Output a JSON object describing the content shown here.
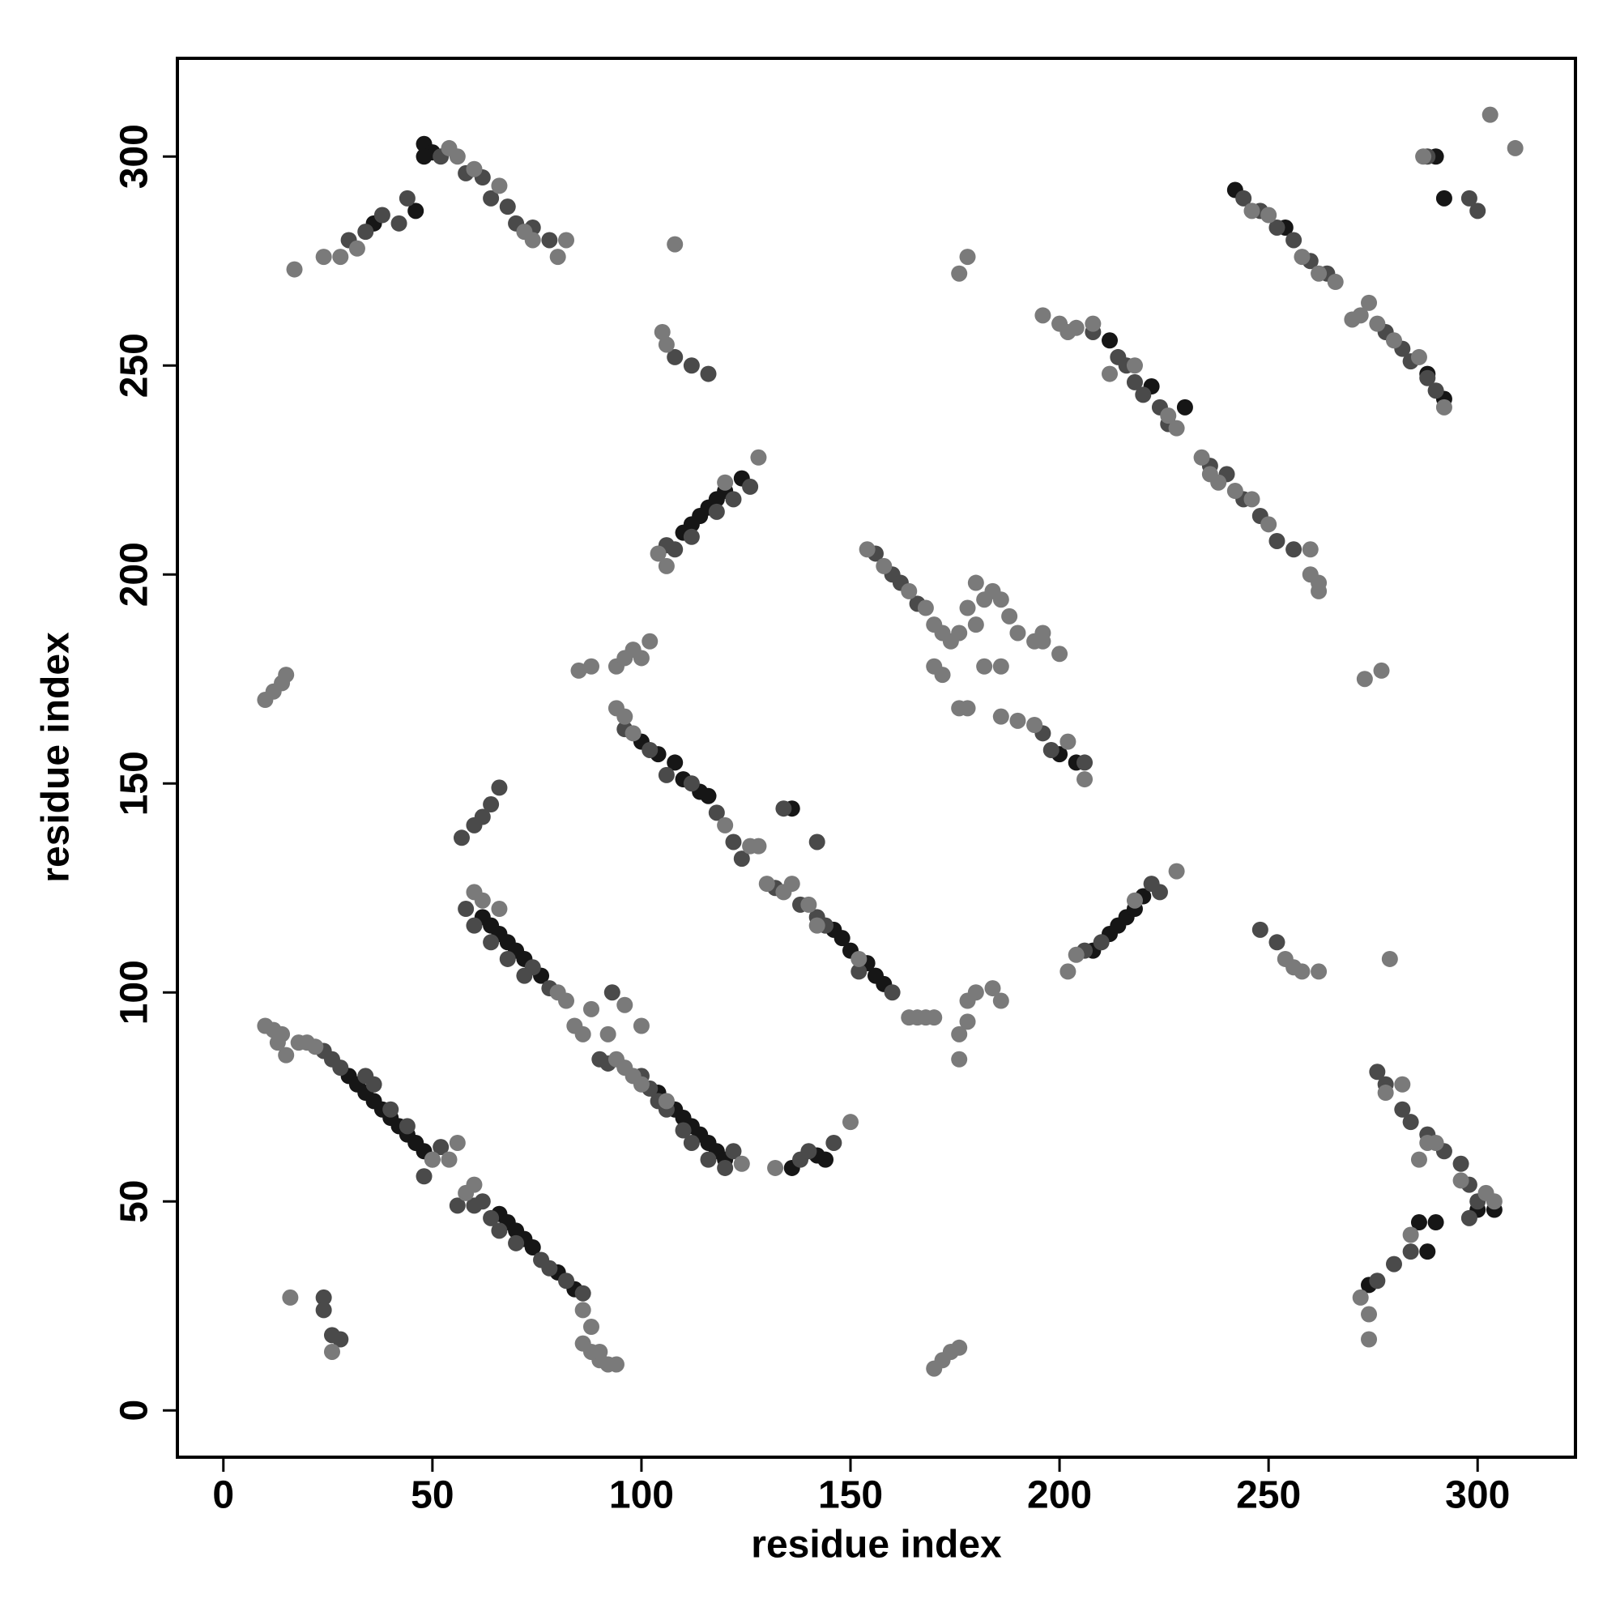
{
  "chart_data": {
    "type": "scatter",
    "xlabel": "residue index",
    "ylabel": "residue index",
    "xlim": [
      -11,
      323.4
    ],
    "ylim": [
      -11.2,
      323.5
    ],
    "xticks": [
      0,
      50,
      100,
      150,
      200,
      250,
      300
    ],
    "yticks": [
      0,
      50,
      100,
      150,
      200,
      250,
      300
    ],
    "grid": false,
    "series": [
      {
        "color": "#161616",
        "x": [
          30,
          32,
          34,
          36,
          38,
          40,
          42,
          44,
          46,
          48,
          66,
          68,
          70,
          72,
          74,
          80,
          84,
          62,
          64,
          66,
          68,
          70,
          72,
          76,
          104,
          108,
          110,
          112,
          114,
          116,
          118,
          120,
          100,
          104,
          108,
          110,
          114,
          116,
          146,
          148,
          150,
          154,
          156,
          158,
          110,
          112,
          114,
          116,
          118,
          120,
          124,
          208,
          212,
          214,
          216,
          218,
          220,
          48,
          50,
          36,
          144,
          142,
          136,
          274,
          286,
          288,
          290,
          300,
          304,
          292,
          290,
          292,
          136,
          48,
          46,
          200,
          204,
          212,
          222,
          230,
          242,
          254,
          288
        ],
        "y": [
          80,
          78,
          76,
          74,
          72,
          70,
          68,
          66,
          64,
          62,
          47,
          45,
          43,
          41,
          39,
          33,
          29,
          118,
          116,
          114,
          112,
          110,
          108,
          104,
          76,
          72,
          70,
          68,
          66,
          64,
          62,
          60,
          160,
          157,
          155,
          151,
          148,
          147,
          115,
          113,
          110,
          107,
          104,
          102,
          210,
          212,
          214,
          216,
          218,
          220,
          223,
          110,
          114,
          116,
          118,
          120,
          123,
          303,
          301,
          284,
          60,
          61,
          58,
          30,
          45,
          38,
          45,
          48,
          48,
          290,
          300,
          242,
          144,
          300,
          287,
          157,
          155,
          256,
          245,
          240,
          292,
          283,
          248
        ]
      },
      {
        "color": "#4a4a4a",
        "x": [
          24,
          26,
          28,
          34,
          36,
          40,
          44,
          50,
          52,
          48,
          56,
          60,
          62,
          64,
          66,
          70,
          76,
          78,
          82,
          86,
          58,
          60,
          64,
          68,
          72,
          74,
          78,
          90,
          92,
          100,
          102,
          104,
          106,
          110,
          112,
          116,
          120,
          122,
          96,
          102,
          106,
          112,
          118,
          122,
          124,
          132,
          138,
          142,
          144,
          152,
          160,
          156,
          160,
          162,
          166,
          196,
          198,
          206,
          208,
          214,
          216,
          218,
          220,
          224,
          226,
          236,
          240,
          244,
          248,
          252,
          256,
          244,
          248,
          252,
          256,
          260,
          264,
          278,
          282,
          284,
          288,
          290,
          106,
          108,
          112,
          118,
          122,
          126,
          206,
          210,
          222,
          224,
          30,
          34,
          38,
          42,
          44,
          52,
          58,
          62,
          64,
          68,
          70,
          74,
          78,
          276,
          278,
          282,
          284,
          288,
          292,
          296,
          298,
          300,
          298,
          284,
          280,
          276,
          24,
          24,
          26,
          28,
          57,
          60,
          62,
          64,
          66,
          108,
          112,
          116,
          248,
          252,
          138,
          140,
          146,
          93,
          142,
          288,
          298,
          300,
          134
        ],
        "y": [
          86,
          84,
          82,
          80,
          78,
          72,
          68,
          60,
          63,
          56,
          49,
          49,
          50,
          46,
          43,
          40,
          36,
          34,
          31,
          28,
          120,
          116,
          112,
          108,
          104,
          106,
          101,
          84,
          83,
          80,
          77,
          74,
          72,
          67,
          64,
          60,
          58,
          62,
          163,
          158,
          152,
          150,
          143,
          136,
          132,
          125,
          121,
          118,
          116,
          105,
          100,
          205,
          200,
          198,
          193,
          162,
          158,
          155,
          258,
          252,
          250,
          246,
          243,
          240,
          236,
          226,
          224,
          218,
          214,
          208,
          206,
          290,
          287,
          283,
          280,
          275,
          272,
          258,
          254,
          251,
          247,
          244,
          207,
          206,
          209,
          215,
          218,
          221,
          110,
          112,
          126,
          124,
          280,
          282,
          286,
          284,
          290,
          300,
          296,
          295,
          290,
          288,
          284,
          283,
          280,
          81,
          78,
          72,
          69,
          66,
          62,
          59,
          54,
          50,
          46,
          38,
          35,
          31,
          27,
          24,
          18,
          17,
          137,
          140,
          142,
          145,
          149,
          252,
          250,
          248,
          115,
          112,
          60,
          62,
          64,
          100,
          136,
          300,
          290,
          287,
          144
        ]
      },
      {
        "color": "#7a7a7a",
        "x": [
          10,
          12,
          14,
          13,
          18,
          20,
          22,
          15,
          50,
          54,
          56,
          58,
          60,
          86,
          88,
          86,
          88,
          90,
          92,
          94,
          90,
          60,
          62,
          66,
          80,
          82,
          84,
          86,
          88,
          94,
          96,
          98,
          100,
          106,
          124,
          94,
          96,
          98,
          120,
          126,
          128,
          130,
          134,
          136,
          140,
          142,
          152,
          164,
          166,
          168,
          170,
          154,
          158,
          164,
          168,
          170,
          172,
          174,
          170,
          172,
          178,
          176,
          186,
          190,
          194,
          202,
          206,
          196,
          200,
          202,
          204,
          208,
          212,
          218,
          226,
          228,
          234,
          236,
          238,
          242,
          246,
          250,
          260,
          260,
          262,
          262,
          246,
          250,
          258,
          262,
          266,
          270,
          272,
          274,
          276,
          280,
          286,
          292,
          106,
          104,
          120,
          128,
          202,
          204,
          228,
          218,
          17,
          24,
          28,
          32,
          54,
          56,
          60,
          66,
          72,
          80,
          82,
          74,
          180,
          184,
          186,
          188,
          180,
          186,
          182,
          190,
          194,
          196,
          200,
          196,
          176,
          178,
          182,
          10,
          12,
          14,
          15,
          85,
          88,
          94,
          96,
          98,
          102,
          100,
          170,
          172,
          174,
          176,
          176,
          176,
          178,
          178,
          180,
          184,
          186,
          105,
          106,
          108,
          176,
          178,
          273,
          277,
          254,
          256,
          258,
          262,
          279,
          287,
          303,
          309,
          92,
          96,
          100,
          150,
          132,
          16,
          26,
          274,
          274,
          272,
          284,
          278,
          282,
          286,
          290,
          296,
          302,
          288,
          304
        ],
        "y": [
          92,
          91,
          90,
          88,
          88,
          88,
          87,
          85,
          60,
          60,
          64,
          52,
          54,
          24,
          20,
          16,
          14,
          12,
          11,
          11,
          14,
          124,
          122,
          120,
          100,
          98,
          92,
          90,
          96,
          84,
          82,
          80,
          78,
          74,
          59,
          168,
          166,
          162,
          140,
          135,
          135,
          126,
          124,
          126,
          121,
          116,
          108,
          94,
          94,
          94,
          94,
          206,
          202,
          196,
          192,
          188,
          186,
          184,
          178,
          176,
          168,
          168,
          166,
          165,
          164,
          160,
          151,
          262,
          260,
          258,
          259,
          260,
          248,
          250,
          238,
          235,
          228,
          224,
          222,
          220,
          218,
          212,
          206,
          200,
          198,
          196,
          287,
          286,
          276,
          272,
          270,
          261,
          262,
          265,
          260,
          256,
          252,
          240,
          202,
          205,
          222,
          228,
          105,
          109,
          129,
          122,
          273,
          276,
          276,
          278,
          302,
          300,
          297,
          293,
          282,
          276,
          280,
          280,
          198,
          196,
          194,
          190,
          188,
          178,
          178,
          186,
          184,
          186,
          181,
          184,
          186,
          192,
          194,
          170,
          172,
          174,
          176,
          177,
          178,
          178,
          180,
          182,
          184,
          180,
          10,
          12,
          14,
          15,
          84,
          90,
          93,
          98,
          100,
          101,
          98,
          258,
          255,
          279,
          272,
          276,
          175,
          177,
          108,
          106,
          105,
          105,
          108,
          300,
          310,
          302,
          90,
          97,
          92,
          69,
          58,
          27,
          14,
          23,
          17,
          27,
          42,
          76,
          78,
          60,
          64,
          55,
          52,
          64,
          50
        ]
      }
    ]
  }
}
